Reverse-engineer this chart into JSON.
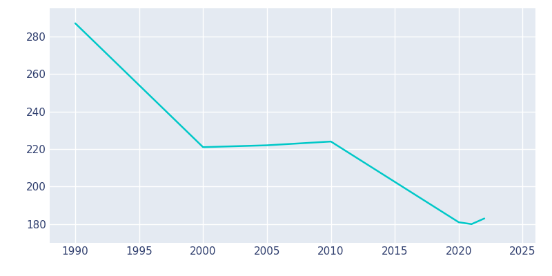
{
  "years": [
    1990,
    2000,
    2005,
    2010,
    2020,
    2021,
    2022
  ],
  "population": [
    287,
    221,
    222,
    224,
    181,
    180,
    183
  ],
  "line_color": "#00C8C8",
  "background_color": "#E4EAF2",
  "outer_background": "#FFFFFF",
  "grid_color": "#FFFFFF",
  "xlim": [
    1988,
    2026
  ],
  "ylim": [
    170,
    295
  ],
  "xticks": [
    1990,
    1995,
    2000,
    2005,
    2010,
    2015,
    2020,
    2025
  ],
  "yticks": [
    180,
    200,
    220,
    240,
    260,
    280
  ],
  "tick_label_color": "#2F3E6E",
  "tick_fontsize": 11,
  "line_width": 1.8
}
